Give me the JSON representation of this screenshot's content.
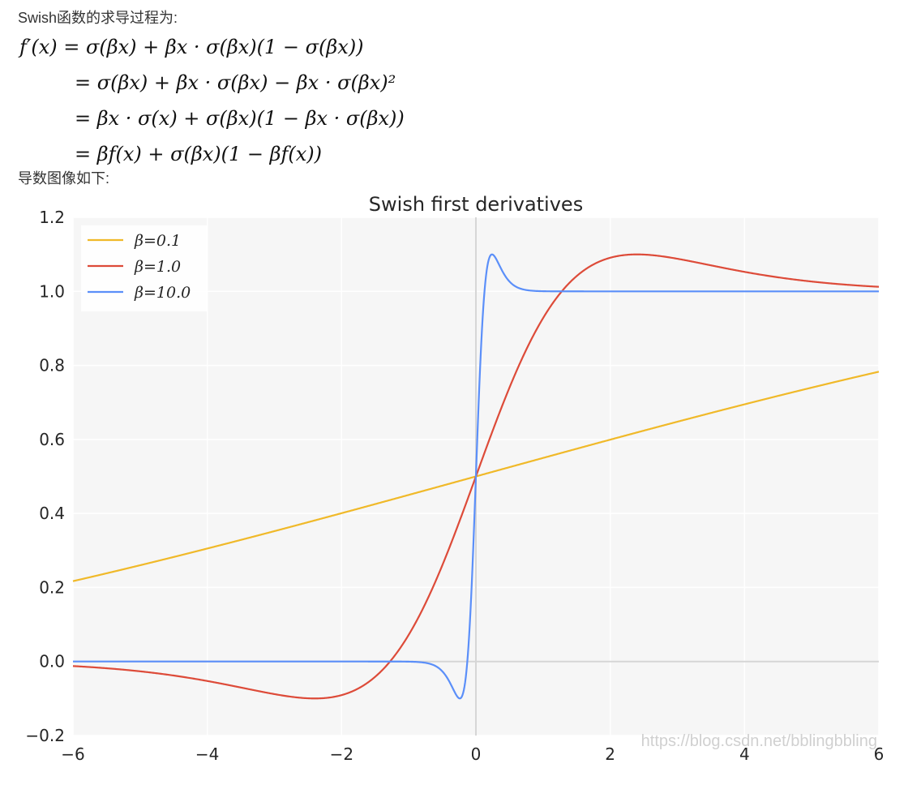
{
  "intro_text": "Swish函数的求导过程为:",
  "formula_lines": [
    "f′(x) = σ(βx) + βx · σ(βx)(1 − σ(βx))",
    "= σ(βx) + βx · σ(βx) − βx · σ(βx)²",
    "= βx · σ(x) + σ(βx)(1 − βx · σ(βx))",
    "= βf(x) + σ(βx)(1 − βf(x))"
  ],
  "deriv_text": "导数图像如下:",
  "watermark": "https://blog.csdn.net/bblingbbling",
  "chart_data": {
    "type": "line",
    "title": "Swish first derivatives",
    "xlabel": "",
    "ylabel": "",
    "xlim": [
      -6,
      6
    ],
    "ylim": [
      -0.2,
      1.2
    ],
    "xticks": [
      "−6",
      "−4",
      "−2",
      "0",
      "2",
      "4",
      "6"
    ],
    "yticks": [
      "−0.2",
      "0.0",
      "0.2",
      "0.4",
      "0.6",
      "0.8",
      "1.0",
      "1.2"
    ],
    "grid": true,
    "legend_position": "top-left",
    "series": [
      {
        "name": "β=0.1",
        "beta": 0.1,
        "color": "#f0b929"
      },
      {
        "name": "β=1.0",
        "beta": 1.0,
        "color": "#dd4b39"
      },
      {
        "name": "β=10.0",
        "beta": 10.0,
        "color": "#5b8ff9"
      }
    ]
  }
}
